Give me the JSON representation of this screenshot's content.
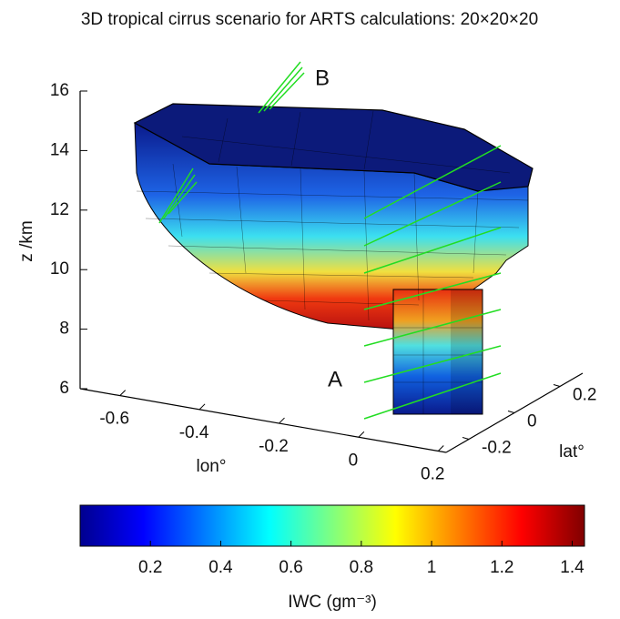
{
  "chart_data": {
    "type": "surface3d",
    "title": "3D tropical cirrus scenario for ARTS calculations: 20×20×20",
    "zlabel": "z /km",
    "xlabel": "lon°",
    "ylabel": "lat°",
    "zlim": [
      6,
      16
    ],
    "zticks": [
      6,
      8,
      10,
      12,
      14,
      16
    ],
    "xlim": [
      -0.7,
      0.22
    ],
    "xticks": [
      -0.6,
      -0.4,
      -0.2,
      0,
      0.2
    ],
    "ylim": [
      -0.3,
      0.3
    ],
    "yticks": [
      -0.2,
      0,
      0.2
    ],
    "colorbar": {
      "label": "IWC (gm⁻³)",
      "clim": [
        0,
        1.435
      ],
      "ticks": [
        0.2,
        0.4,
        0.6,
        0.8,
        1,
        1.2,
        1.4
      ],
      "colormap": "jet"
    },
    "annotations": [
      "A",
      "B"
    ]
  }
}
